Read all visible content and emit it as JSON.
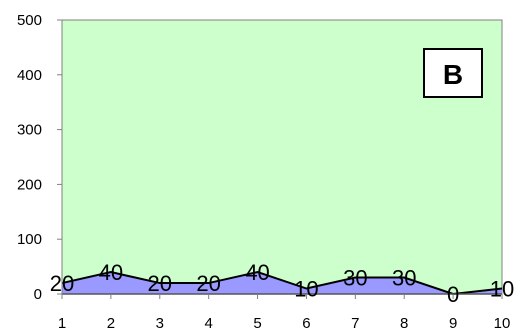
{
  "chart_data": {
    "type": "area",
    "x": [
      1,
      2,
      3,
      4,
      5,
      6,
      7,
      8,
      9,
      10
    ],
    "series": [
      {
        "values": [
          20,
          40,
          20,
          20,
          40,
          10,
          30,
          30,
          0,
          10
        ]
      }
    ],
    "data_labels": [
      "20",
      "40",
      "20",
      "20",
      "40",
      "10",
      "30",
      "30",
      "0",
      "10"
    ],
    "ylim": [
      0,
      500
    ],
    "yticks": [
      0,
      100,
      200,
      300,
      400,
      500
    ],
    "xticks": [
      "1",
      "2",
      "3",
      "4",
      "5",
      "6",
      "7",
      "8",
      "9",
      "10"
    ],
    "grid": false,
    "annotation": "B",
    "colors": {
      "plot_background": "#ccffcc",
      "area_fill": "#9999ff",
      "area_line": "#000000",
      "axis": "#808080"
    }
  }
}
